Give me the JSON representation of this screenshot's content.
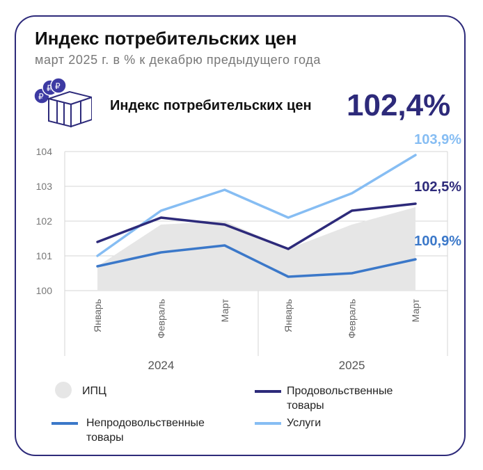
{
  "header": {
    "title": "Индекс потребительских цен",
    "subtitle": "март 2025 г. в % к декабрю предыдущего года"
  },
  "highlight": {
    "icon": "price-tags-box-icon",
    "label": "Индекс потребительских цен",
    "value": "102,4%"
  },
  "colors": {
    "border": "#2d2a7a",
    "food": "#2d2a7a",
    "nonfood": "#3b78c9",
    "services": "#86bdf3",
    "area": "#e6e6e6",
    "grid": "#d6d6d6"
  },
  "chart_data": {
    "type": "line",
    "categories": [
      "Январь",
      "Февраль",
      "Март",
      "Январь",
      "Февраль",
      "Март"
    ],
    "groups": [
      {
        "label": "2024",
        "from": 0,
        "to": 2
      },
      {
        "label": "2025",
        "from": 3,
        "to": 5
      }
    ],
    "ylim": [
      100,
      104
    ],
    "yticks": [
      100,
      101,
      102,
      103,
      104
    ],
    "area": {
      "name": "ИПЦ",
      "values": [
        100.7,
        101.9,
        102.0,
        101.2,
        101.9,
        102.4
      ]
    },
    "series": [
      {
        "key": "food",
        "name": "Продовольственные товары",
        "values": [
          101.4,
          102.1,
          101.9,
          101.2,
          102.3,
          102.5
        ],
        "end_label": "102,5%"
      },
      {
        "key": "nonfood",
        "name": "Непродовольственные товары",
        "values": [
          100.7,
          101.1,
          101.3,
          100.4,
          100.5,
          100.9
        ],
        "end_label": "100,9%"
      },
      {
        "key": "services",
        "name": "Услуги",
        "values": [
          101.0,
          102.3,
          102.9,
          102.1,
          102.8,
          103.9
        ],
        "end_label": "103,9%"
      }
    ]
  },
  "legend": {
    "area_label": "ИПЦ",
    "food_line1": "Продовольственные",
    "food_line2": "товары",
    "nonfood_line1": "Непродовольственные",
    "nonfood_line2": "товары",
    "services_label": "Услуги"
  }
}
